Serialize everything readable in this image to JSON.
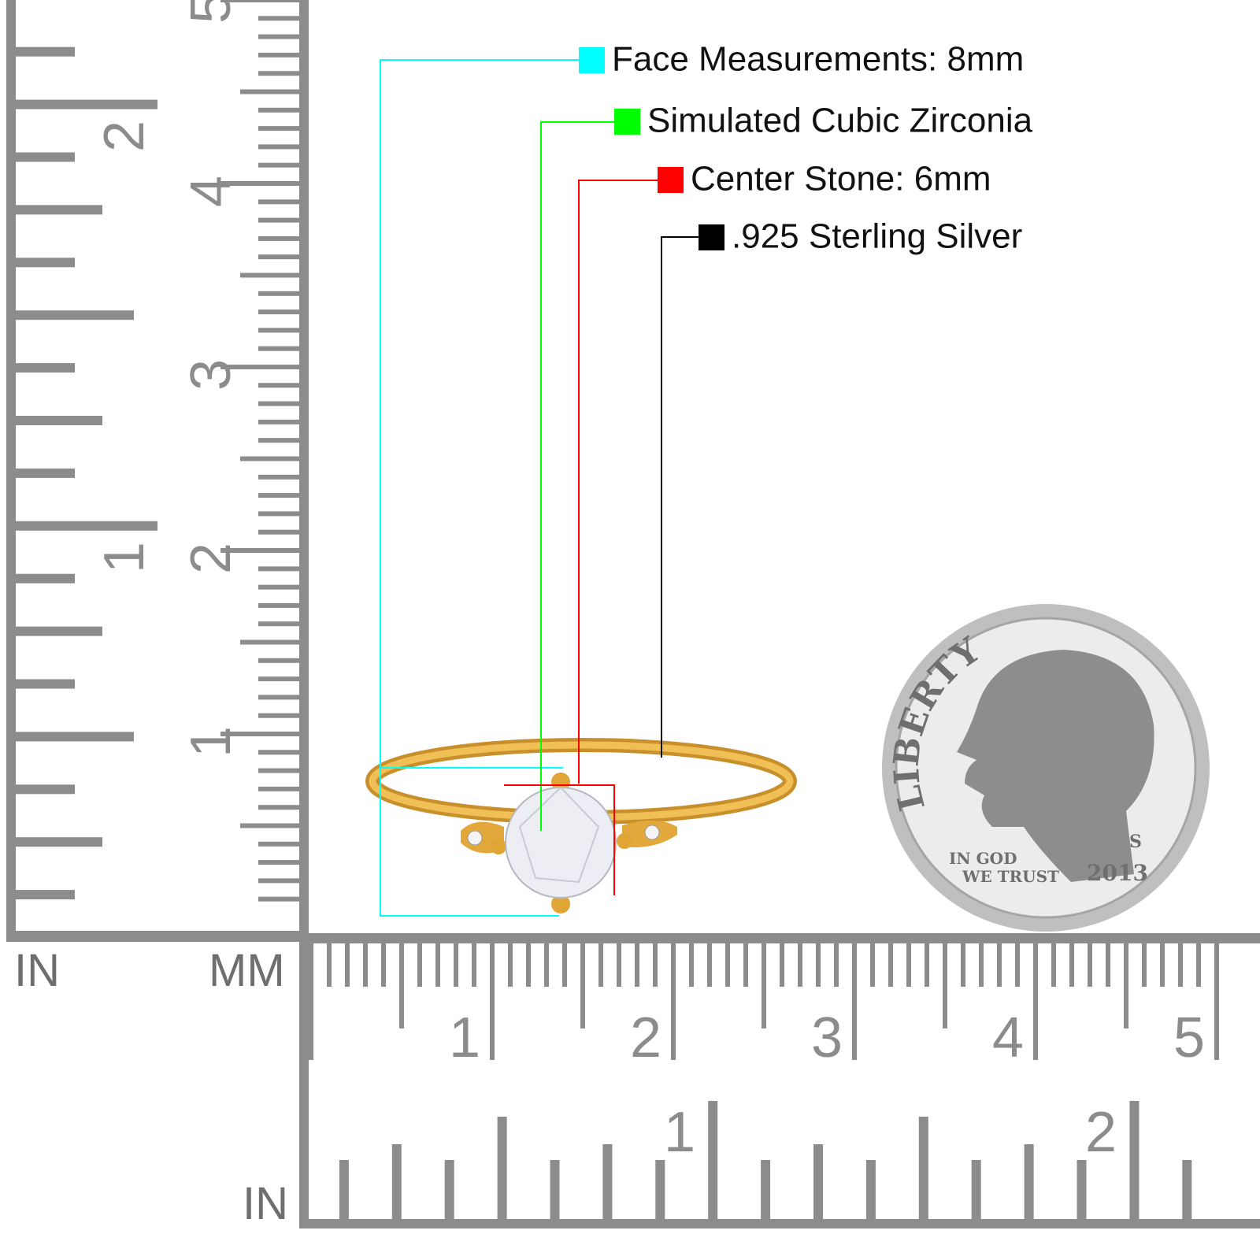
{
  "legend": [
    {
      "label": "Face Measurements: 8mm",
      "color": "#00ffff"
    },
    {
      "label": "Simulated Cubic Zirconia",
      "color": "#00ff00"
    },
    {
      "label": "Center Stone: 6mm",
      "color": "#ff0000"
    },
    {
      "label": ".925 Sterling Silver",
      "color": "#000000"
    }
  ],
  "rulers": {
    "vertical": {
      "inch_unit": "IN",
      "mm_unit": "MM",
      "cm_labels": [
        "1",
        "2",
        "3",
        "4",
        "5"
      ],
      "inch_labels": [
        "1",
        "2"
      ]
    },
    "horizontal": {
      "inch_unit": "IN",
      "cm_labels": [
        "1",
        "2",
        "3",
        "4",
        "5"
      ],
      "inch_labels": [
        "1",
        "2"
      ]
    }
  },
  "coin": {
    "legend": "LIBERTY",
    "motto_line1": "IN GOD",
    "motto_line2": "WE TRUST",
    "year": "2013",
    "mint": "S"
  }
}
